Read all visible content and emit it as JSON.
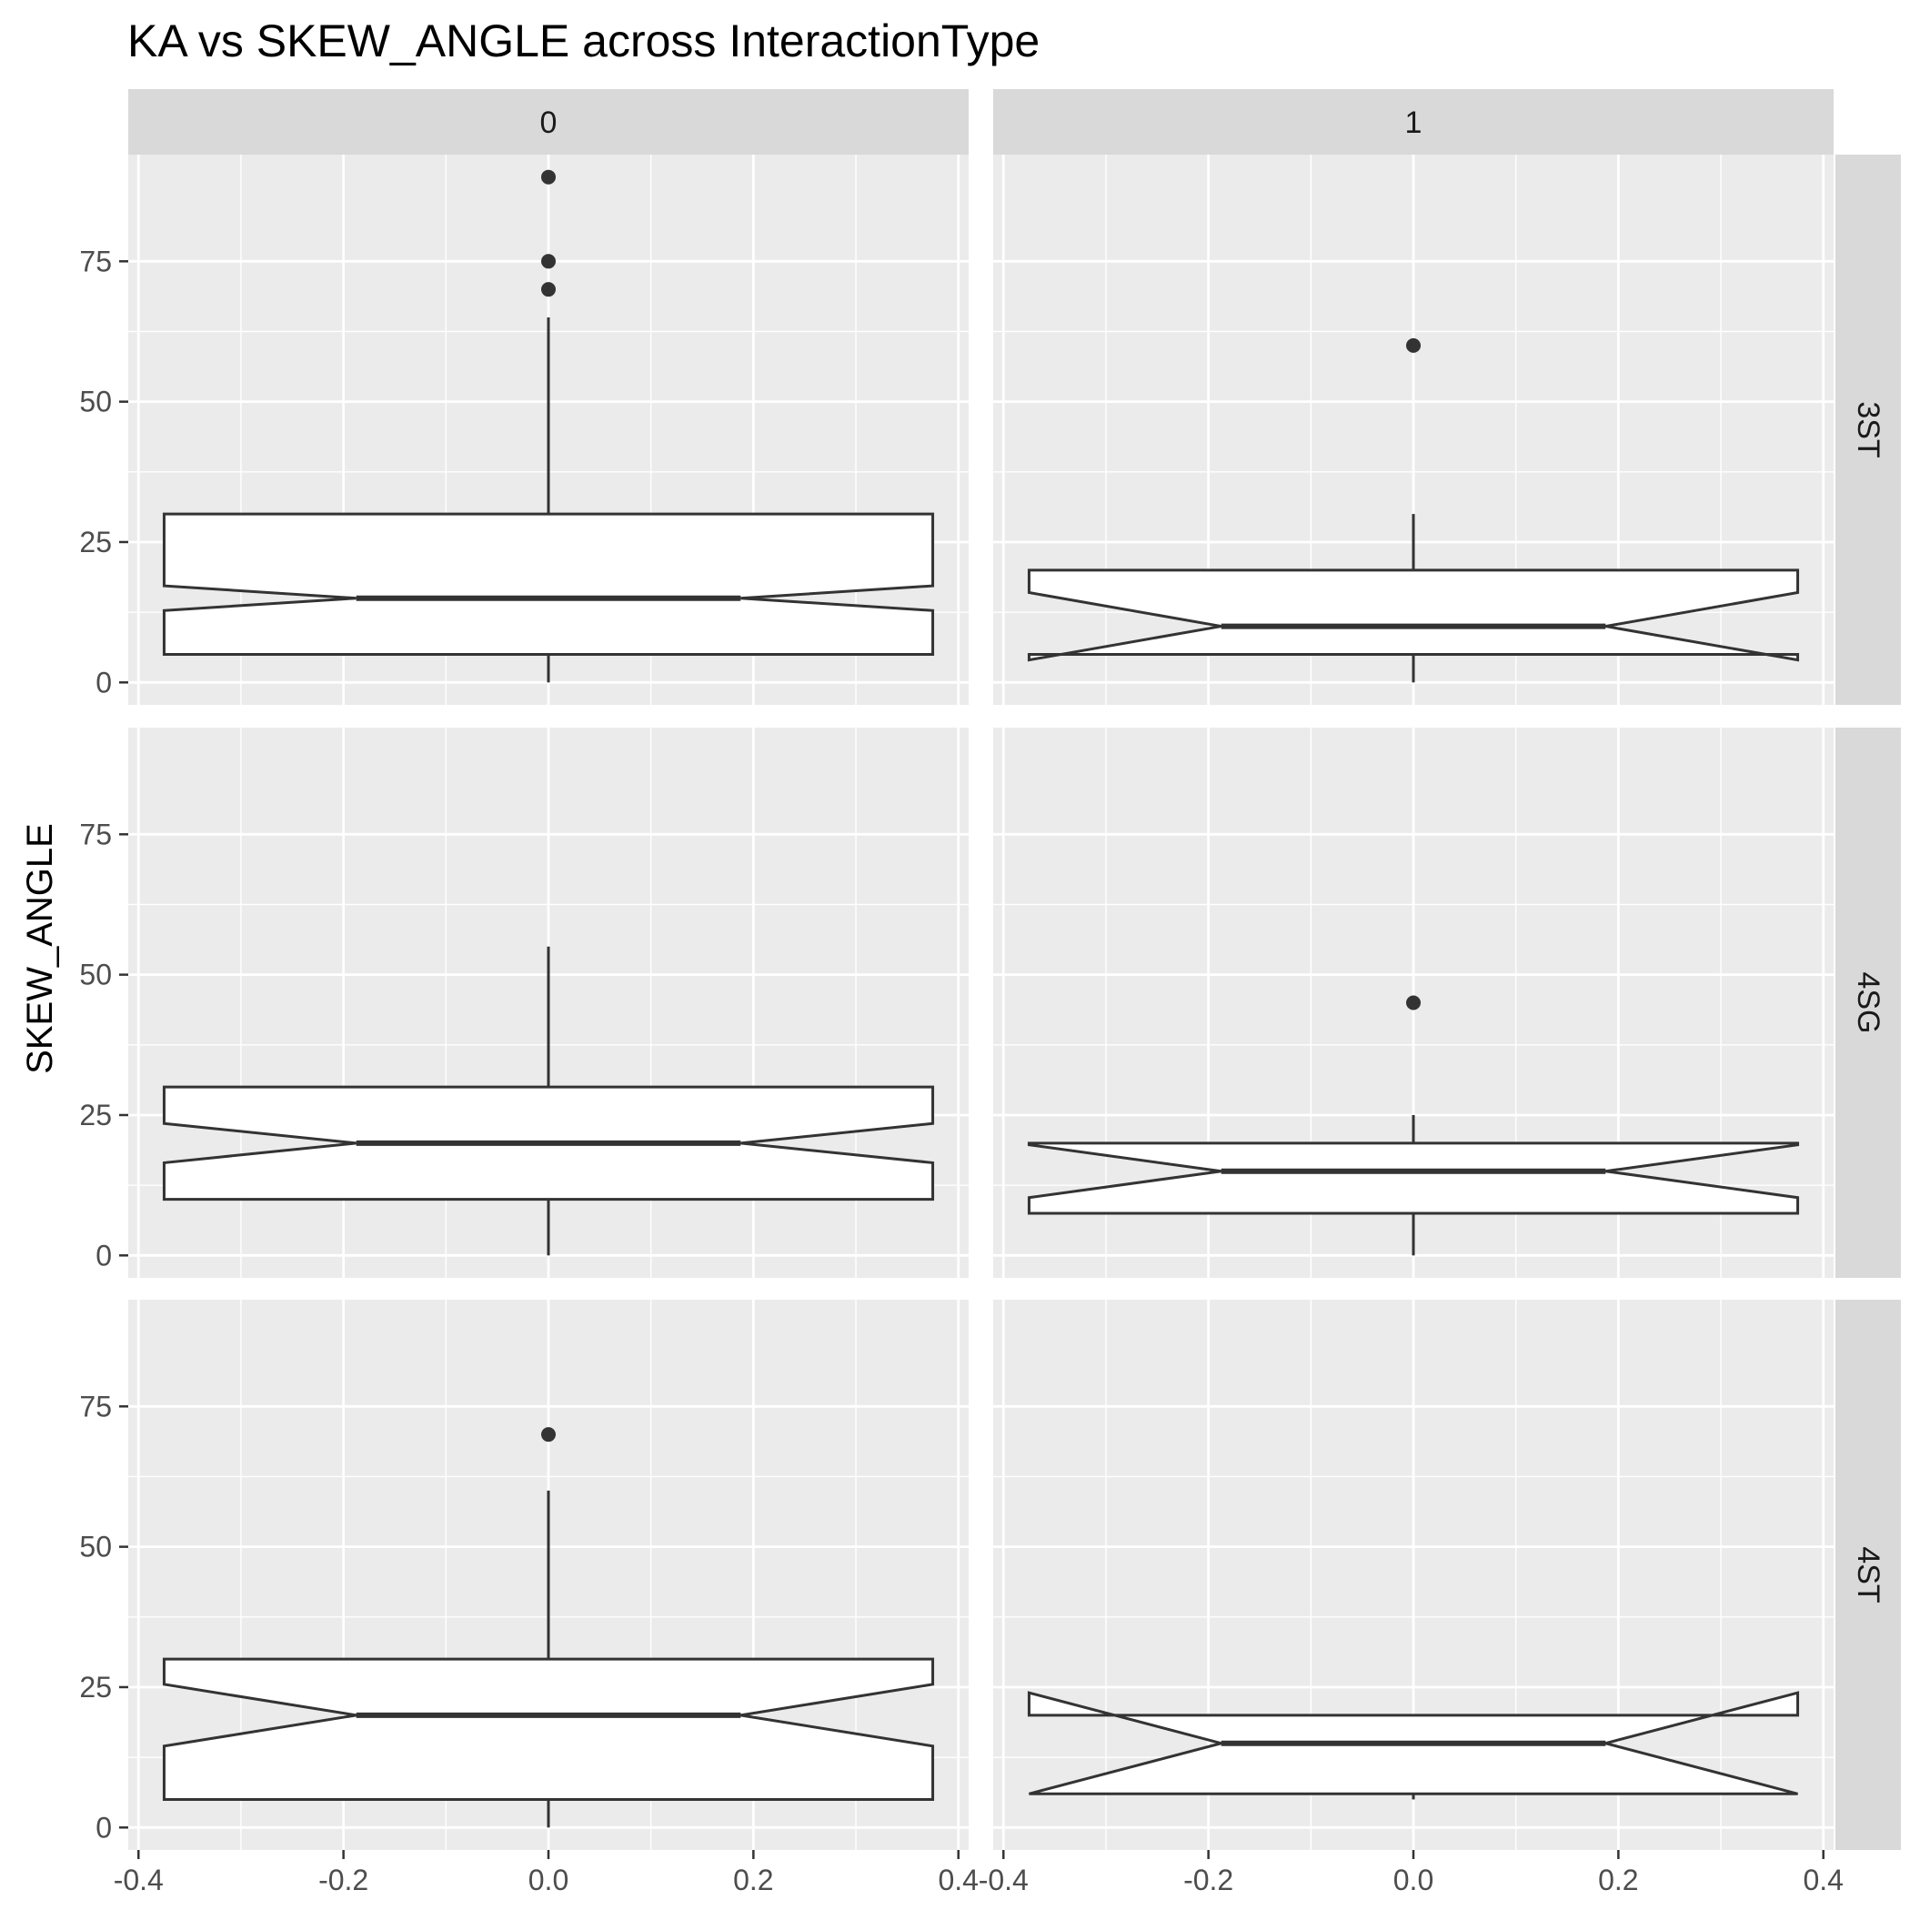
{
  "chart_data": {
    "type": "boxplot",
    "title": "KA vs SKEW_ANGLE across InteractionType",
    "ylabel": "SKEW_ANGLE",
    "xlabel": "",
    "notched": true,
    "grid": true,
    "xlim": [
      -0.41,
      0.41
    ],
    "ylim": [
      -4,
      94
    ],
    "x_ticks": [
      -0.4,
      -0.2,
      0.0,
      0.2,
      0.4
    ],
    "x_tick_labels": [
      "-0.4",
      "-0.2",
      "0.0",
      "0.2",
      "0.4"
    ],
    "y_ticks": [
      0,
      25,
      50,
      75
    ],
    "y_tick_labels": [
      "0",
      "25",
      "50",
      "75"
    ],
    "col_facets": [
      "0",
      "1"
    ],
    "row_facets": [
      "3ST",
      "4SG",
      "4ST"
    ],
    "box_x_range": [
      -0.375,
      0.375
    ],
    "colors": {
      "panel_background": "#ebebeb",
      "grid": "#ffffff",
      "strip_background": "#d9d9d9",
      "box_fill": "#ffffff",
      "box_line": "#333333",
      "outlier": "#333333"
    },
    "panels": [
      {
        "row": "3ST",
        "col": "0",
        "min": 0,
        "q1": 5,
        "median": 15,
        "q3": 30,
        "max": 65,
        "notch_low": 12.8,
        "notch_high": 17.2,
        "outliers": [
          70,
          75,
          90
        ]
      },
      {
        "row": "3ST",
        "col": "1",
        "min": 0,
        "q1": 5,
        "median": 10,
        "q3": 20,
        "max": 30,
        "notch_low": 4,
        "notch_high": 16,
        "outliers": [
          60
        ]
      },
      {
        "row": "4SG",
        "col": "0",
        "min": 0,
        "q1": 10,
        "median": 20,
        "q3": 30,
        "max": 55,
        "notch_low": 16.5,
        "notch_high": 23.5,
        "outliers": []
      },
      {
        "row": "4SG",
        "col": "1",
        "min": 0,
        "q1": 7.5,
        "median": 15,
        "q3": 20,
        "max": 25,
        "notch_low": 10.3,
        "notch_high": 19.7,
        "outliers": [
          45
        ]
      },
      {
        "row": "4ST",
        "col": "0",
        "min": 0,
        "q1": 5,
        "median": 20,
        "q3": 30,
        "max": 60,
        "notch_low": 14.5,
        "notch_high": 25.5,
        "outliers": [
          70
        ]
      },
      {
        "row": "4ST",
        "col": "1",
        "min": 5,
        "q1": 6,
        "median": 15,
        "q3": 20,
        "max": 20,
        "notch_low": 6,
        "notch_high": 24,
        "outliers": []
      }
    ]
  }
}
